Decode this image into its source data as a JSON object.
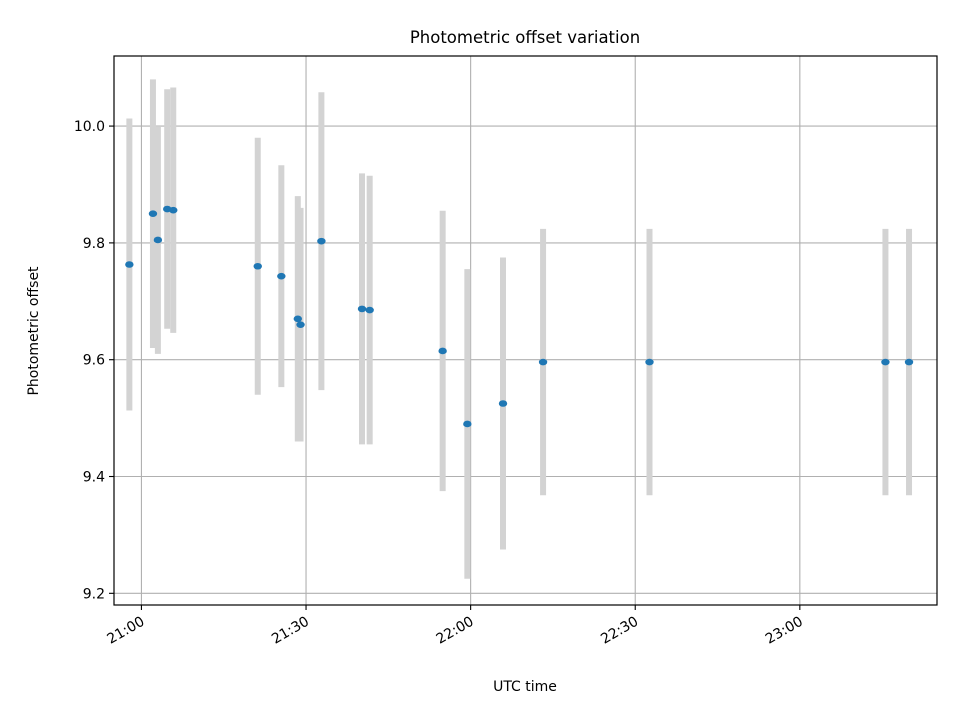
{
  "chart_data": {
    "type": "scatter",
    "title": "Photometric offset variation",
    "xlabel": "UTC time",
    "ylabel": "Photometric offset",
    "xlim": [
      "20:55",
      "23:25"
    ],
    "ylim": [
      9.18,
      10.12
    ],
    "x_ticks": [
      "21:00",
      "21:30",
      "22:00",
      "22:30",
      "23:00"
    ],
    "y_ticks": [
      9.2,
      9.4,
      9.6,
      9.8,
      10.0
    ],
    "y_tick_labels": [
      "9.2",
      "9.4",
      "9.6",
      "9.8",
      "10.0"
    ],
    "grid": true,
    "marker_color": "#1f77b4",
    "errorbar_color": "#d3d3d3",
    "series": [
      {
        "points": [
          {
            "x": "20:57:48",
            "y": 9.763,
            "yerr": 0.25
          },
          {
            "x": "21:02:06",
            "y": 9.85,
            "yerr": 0.23
          },
          {
            "x": "21:03:00",
            "y": 9.805,
            "yerr": 0.195
          },
          {
            "x": "21:04:42",
            "y": 9.858,
            "yerr": 0.205
          },
          {
            "x": "21:05:48",
            "y": 9.856,
            "yerr": 0.21
          },
          {
            "x": "21:21:12",
            "y": 9.76,
            "yerr": 0.22
          },
          {
            "x": "21:25:30",
            "y": 9.743,
            "yerr": 0.19
          },
          {
            "x": "21:28:30",
            "y": 9.67,
            "yerr": 0.21
          },
          {
            "x": "21:29:00",
            "y": 9.66,
            "yerr": 0.2
          },
          {
            "x": "21:32:48",
            "y": 9.803,
            "yerr": 0.255
          },
          {
            "x": "21:40:12",
            "y": 9.687,
            "yerr": 0.232
          },
          {
            "x": "21:41:36",
            "y": 9.685,
            "yerr": 0.23
          },
          {
            "x": "21:54:54",
            "y": 9.615,
            "yerr": 0.24
          },
          {
            "x": "21:59:24",
            "y": 9.49,
            "yerr": 0.265
          },
          {
            "x": "22:05:54",
            "y": 9.525,
            "yerr": 0.25
          },
          {
            "x": "22:13:12",
            "y": 9.596,
            "yerr": 0.228
          },
          {
            "x": "22:32:36",
            "y": 9.596,
            "yerr": 0.228
          },
          {
            "x": "23:15:36",
            "y": 9.596,
            "yerr": 0.228
          },
          {
            "x": "23:19:54",
            "y": 9.596,
            "yerr": 0.228
          }
        ]
      }
    ]
  }
}
